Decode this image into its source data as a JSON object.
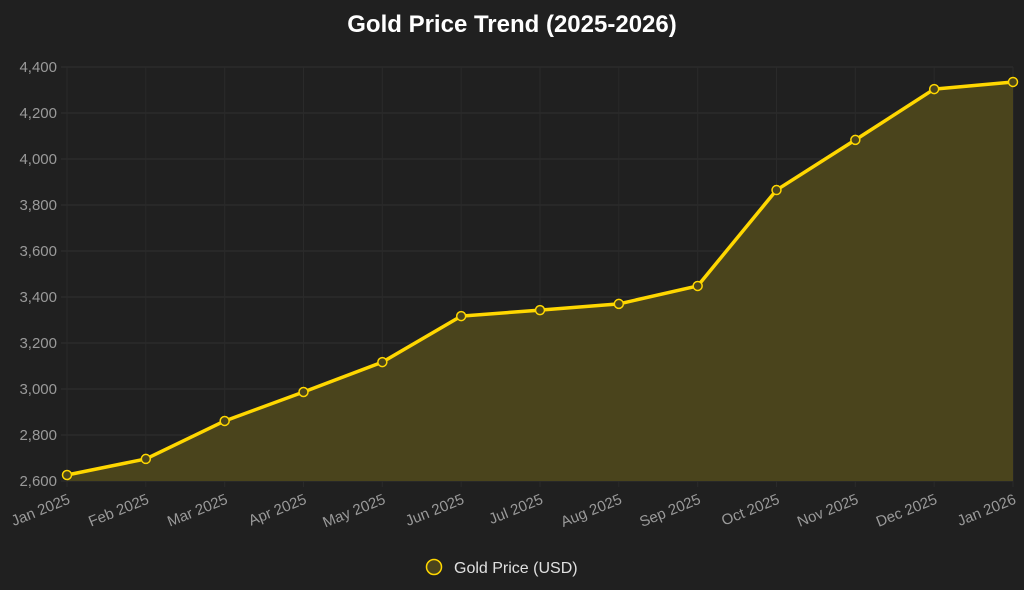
{
  "chart_data": {
    "type": "area",
    "title": "Gold Price Trend (2025-2026)",
    "xlabel": "",
    "ylabel": "",
    "categories": [
      "Jan 2025",
      "Feb 2025",
      "Mar 2025",
      "Apr 2025",
      "May 2025",
      "Jun 2025",
      "Jul 2025",
      "Aug 2025",
      "Sep 2025",
      "Oct 2025",
      "Nov 2025",
      "Dec 2025",
      "Jan 2026"
    ],
    "series": [
      {
        "name": "Gold Price (USD)",
        "values": [
          2626,
          2696,
          2861,
          2987,
          3117,
          3317,
          3343,
          3370,
          3448,
          3865,
          4083,
          4304,
          4335
        ],
        "color": "#FFD700",
        "fill": "#4a441c"
      }
    ],
    "ylim": [
      2600,
      4400
    ],
    "yticks": [
      2600,
      2800,
      3000,
      3200,
      3400,
      3600,
      3800,
      4000,
      4200,
      4400
    ],
    "ytick_labels": [
      "2,600",
      "2,800",
      "3,000",
      "3,200",
      "3,400",
      "3,600",
      "3,800",
      "4,000",
      "4,200",
      "4,400"
    ],
    "grid": true,
    "legend_position": "bottom"
  }
}
